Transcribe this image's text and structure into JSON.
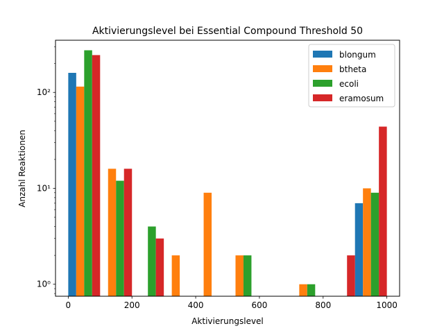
{
  "chart_data": {
    "type": "bar",
    "title": "Aktivierungslevel bei Essential Compound Threshold 50",
    "xlabel": "Aktivierungslevel",
    "ylabel": "Anzahl Reaktionen",
    "yscale": "log",
    "xlim": [
      -40,
      1040
    ],
    "ylim": [
      0.75,
      350
    ],
    "xticks": [
      0,
      200,
      400,
      600,
      800,
      1000
    ],
    "xtick_labels": [
      "0",
      "200",
      "400",
      "600",
      "800",
      "1000"
    ],
    "yticks": [
      1,
      10,
      100
    ],
    "ytick_labels": [
      "10⁰",
      "10¹",
      "10²"
    ],
    "bin_edges": [
      0,
      100,
      200,
      300,
      400,
      500,
      600,
      700,
      800,
      900,
      1000
    ],
    "legend_position": "top-right",
    "grid": false,
    "series": [
      {
        "name": "blongum",
        "color": "#1f77b4",
        "values": [
          160,
          0,
          0,
          0,
          0,
          0,
          0,
          0,
          0,
          7
        ]
      },
      {
        "name": "btheta",
        "color": "#ff7f0e",
        "values": [
          115,
          16,
          0,
          2,
          9,
          2,
          0,
          1,
          0,
          10
        ]
      },
      {
        "name": "ecoli",
        "color": "#2ca02c",
        "values": [
          275,
          12,
          4,
          0,
          0,
          2,
          0,
          1,
          0,
          9
        ]
      },
      {
        "name": "eramosum",
        "color": "#d62728",
        "values": [
          245,
          16,
          3,
          0,
          0,
          0,
          0,
          0,
          2,
          44
        ]
      }
    ]
  }
}
